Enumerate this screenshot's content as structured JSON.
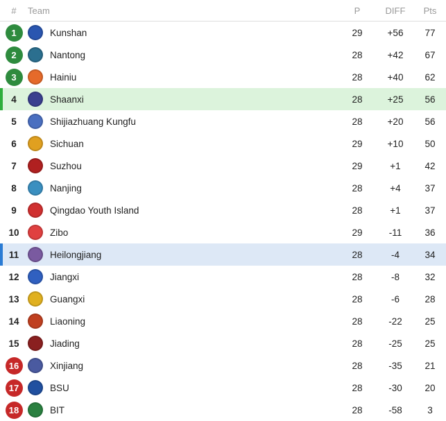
{
  "header": {
    "rank": "#",
    "team": "Team",
    "played": "P",
    "diff": "DIFF",
    "points": "Pts"
  },
  "colors": {
    "green_badge": "#2e8b3e",
    "red_badge": "#c62828",
    "green_highlight": "#dcf3dc",
    "green_bar": "#2eae3c",
    "blue_highlight": "#dde8f6",
    "blue_bar": "#2a7bd4"
  },
  "rows": [
    {
      "rank": "1",
      "team": "Kunshan",
      "p": "29",
      "diff": "+56",
      "pts": "77",
      "badge": "green",
      "logo_color": "#2a56b0"
    },
    {
      "rank": "2",
      "team": "Nantong",
      "p": "28",
      "diff": "+42",
      "pts": "67",
      "badge": "green",
      "logo_color": "#2b6f8f"
    },
    {
      "rank": "3",
      "team": "Hainiu",
      "p": "28",
      "diff": "+40",
      "pts": "62",
      "badge": "green",
      "logo_color": "#e56a2a"
    },
    {
      "rank": "4",
      "team": "Shaanxi",
      "p": "28",
      "diff": "+25",
      "pts": "56",
      "highlight": "green",
      "logo_color": "#3a3f8f"
    },
    {
      "rank": "5",
      "team": "Shijiazhuang Kungfu",
      "p": "28",
      "diff": "+20",
      "pts": "56",
      "logo_color": "#4a6fc0"
    },
    {
      "rank": "6",
      "team": "Sichuan",
      "p": "29",
      "diff": "+10",
      "pts": "50",
      "logo_color": "#e0a020"
    },
    {
      "rank": "7",
      "team": "Suzhou",
      "p": "29",
      "diff": "+1",
      "pts": "42",
      "logo_color": "#b02020"
    },
    {
      "rank": "8",
      "team": "Nanjing",
      "p": "28",
      "diff": "+4",
      "pts": "37",
      "logo_color": "#3a8fc0"
    },
    {
      "rank": "9",
      "team": "Qingdao Youth Island",
      "p": "28",
      "diff": "+1",
      "pts": "37",
      "logo_color": "#d03030"
    },
    {
      "rank": "10",
      "team": "Zibo",
      "p": "29",
      "diff": "-11",
      "pts": "36",
      "logo_color": "#e04040"
    },
    {
      "rank": "11",
      "team": "Heilongjiang",
      "p": "28",
      "diff": "-4",
      "pts": "34",
      "highlight": "blue",
      "logo_color": "#7a5aa0"
    },
    {
      "rank": "12",
      "team": "Jiangxi",
      "p": "28",
      "diff": "-8",
      "pts": "32",
      "logo_color": "#3060c0"
    },
    {
      "rank": "13",
      "team": "Guangxi",
      "p": "28",
      "diff": "-6",
      "pts": "28",
      "logo_color": "#e0b020"
    },
    {
      "rank": "14",
      "team": "Liaoning",
      "p": "28",
      "diff": "-22",
      "pts": "25",
      "logo_color": "#c04020"
    },
    {
      "rank": "15",
      "team": "Jiading",
      "p": "28",
      "diff": "-25",
      "pts": "25",
      "logo_color": "#8a2020"
    },
    {
      "rank": "16",
      "team": "Xinjiang",
      "p": "28",
      "diff": "-35",
      "pts": "21",
      "badge": "red",
      "logo_color": "#4a5aa0"
    },
    {
      "rank": "17",
      "team": "BSU",
      "p": "28",
      "diff": "-30",
      "pts": "20",
      "badge": "red",
      "logo_color": "#2050a0"
    },
    {
      "rank": "18",
      "team": "BIT",
      "p": "28",
      "diff": "-58",
      "pts": "3",
      "badge": "red",
      "logo_color": "#2a8040"
    }
  ]
}
